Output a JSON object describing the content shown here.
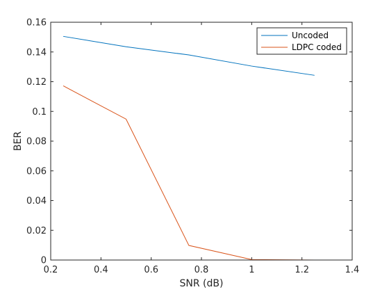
{
  "chart_data": {
    "type": "line",
    "xlabel": "SNR (dB)",
    "ylabel": "BER",
    "xlim": [
      0.2,
      1.4
    ],
    "ylim": [
      0,
      0.16
    ],
    "xticks": [
      "0.2",
      "0.4",
      "0.6",
      "0.8",
      "1",
      "1.2",
      "1.4"
    ],
    "yticks": [
      "0",
      "0.02",
      "0.04",
      "0.06",
      "0.08",
      "0.1",
      "0.12",
      "0.14",
      "0.16"
    ],
    "grid": false,
    "legend_position": "top-right",
    "series": [
      {
        "name": "Uncoded",
        "color": "#0072bd",
        "x": [
          0.25,
          0.5,
          0.75,
          1.0,
          1.25
        ],
        "y": [
          0.1505,
          0.1435,
          0.138,
          0.1305,
          0.1243
        ]
      },
      {
        "name": "LDPC coded",
        "color": "#d95319",
        "x": [
          0.25,
          0.5,
          0.75,
          1.0,
          1.25
        ],
        "y": [
          0.1172,
          0.0948,
          0.0098,
          0.0003,
          0.0
        ]
      }
    ]
  }
}
